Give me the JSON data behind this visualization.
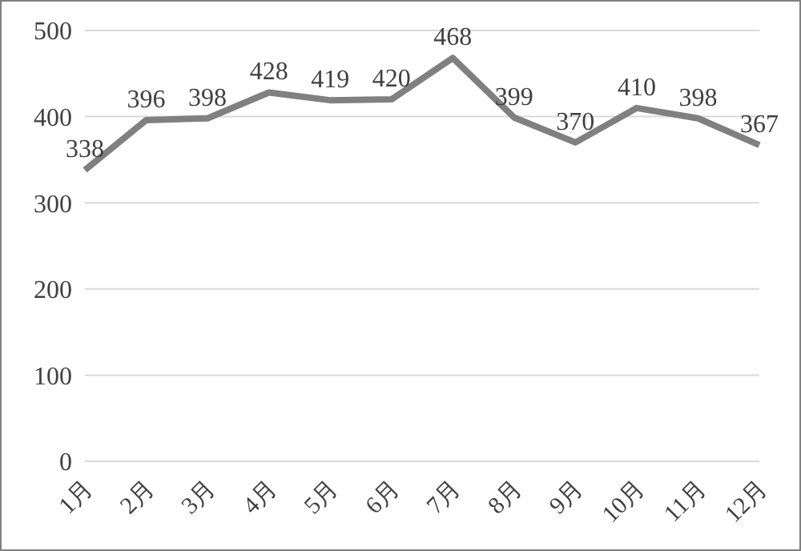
{
  "chart_data": {
    "type": "line",
    "categories": [
      "1月",
      "2月",
      "3月",
      "4月",
      "5月",
      "6月",
      "7月",
      "8月",
      "9月",
      "10月",
      "11月",
      "12月"
    ],
    "series": [
      {
        "color": "#808080",
        "values": [
          338,
          396,
          398,
          428,
          419,
          420,
          468,
          399,
          370,
          410,
          398,
          367
        ]
      }
    ],
    "ylim": [
      0,
      500
    ],
    "yticks": [
      0,
      100,
      200,
      300,
      400,
      500
    ],
    "grid": "y",
    "data_labels": true,
    "marker": "none",
    "line_style": "solid",
    "legend": false
  }
}
